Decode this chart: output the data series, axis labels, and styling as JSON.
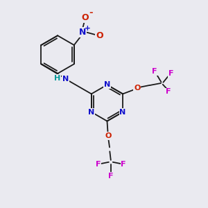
{
  "background_color": "#eaeaf0",
  "bond_color": "#1a1a1a",
  "atom_colors": {
    "N": "#1010cc",
    "O": "#cc2000",
    "F": "#cc00cc",
    "H": "#009999"
  },
  "font_size": 8.0,
  "fig_size": [
    3.0,
    3.0
  ],
  "dpi": 100
}
